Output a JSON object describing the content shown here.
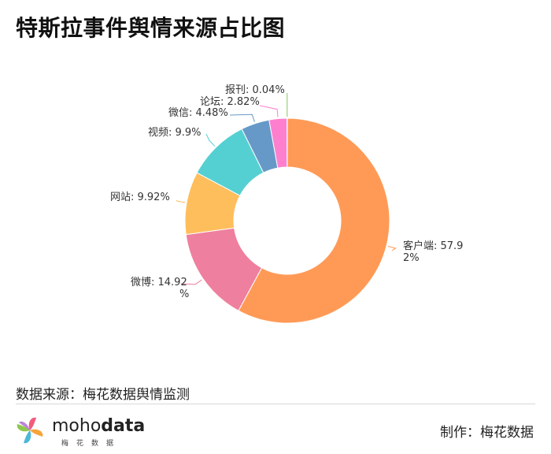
{
  "title": "特斯拉事件舆情来源占比图",
  "chart_data": {
    "type": "pie",
    "variant": "donut",
    "slices": [
      {
        "name": "客户端",
        "value": 57.92,
        "label": "客户端: 57.9\n2%",
        "color": "#ff9a56"
      },
      {
        "name": "微博",
        "value": 14.92,
        "label": "微博: 14.92\n%",
        "color": "#ef7f9e"
      },
      {
        "name": "网站",
        "value": 9.92,
        "label": "网站: 9.92%",
        "color": "#ffbe5c"
      },
      {
        "name": "视频",
        "value": 9.9,
        "label": "视频: 9.9%",
        "color": "#55d0d2"
      },
      {
        "name": "微信",
        "value": 4.48,
        "label": "微信: 4.48%",
        "color": "#6699c8"
      },
      {
        "name": "论坛",
        "value": 2.82,
        "label": "论坛: 2.82%",
        "color": "#ff7fcf"
      },
      {
        "name": "报刊",
        "value": 0.04,
        "label": "报刊: 0.04%",
        "color": "#82c55a"
      }
    ]
  },
  "footer": {
    "source": "数据来源：梅花数据舆情监测",
    "credit": "制作：梅花数据",
    "logo_word_light": "moho",
    "logo_word_bold": "data",
    "logo_sub": "梅花数据"
  }
}
